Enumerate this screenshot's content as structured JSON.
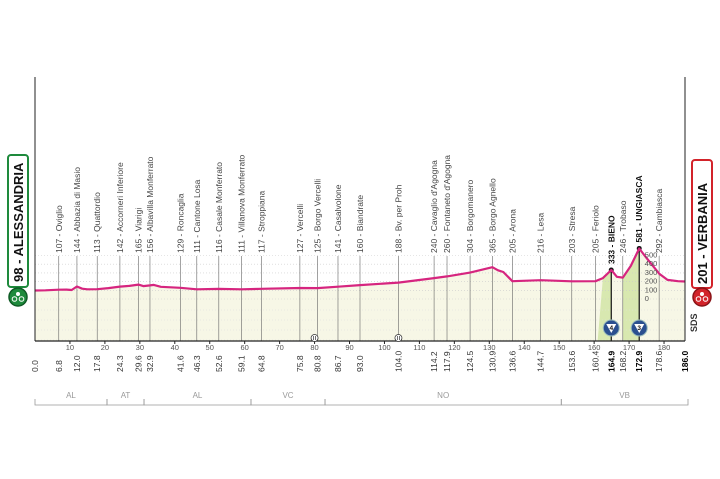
{
  "colors": {
    "profile": "#d6257f",
    "fill": "#f7f7e6",
    "climb_fill": "#d8e8b0",
    "start": "#1e8a3c",
    "finish": "#d2232a",
    "kom_badge": "#2a4f8f"
  },
  "start": {
    "label": "98 - ALESSANDRIA",
    "icon": "start-cyclist-icon"
  },
  "finish": {
    "label": "201 - VERBANIA",
    "icon": "finish-cyclist-icon"
  },
  "sponsor": "SDS",
  "chart_data": {
    "type": "area",
    "xlim": [
      0,
      186
    ],
    "x_unit": "km",
    "y_unit": "m",
    "km_ticks": [
      10,
      20,
      30,
      40,
      50,
      60,
      70,
      80,
      90,
      100,
      110,
      120,
      130,
      140,
      150,
      160,
      170,
      180
    ],
    "profile": [
      [
        0,
        98
      ],
      [
        3,
        100
      ],
      [
        6.8,
        107
      ],
      [
        9,
        108
      ],
      [
        10.5,
        104
      ],
      [
        12,
        144
      ],
      [
        13.5,
        118
      ],
      [
        15,
        112
      ],
      [
        17.8,
        113
      ],
      [
        21,
        125
      ],
      [
        24.3,
        142
      ],
      [
        27,
        150
      ],
      [
        29.6,
        165
      ],
      [
        31,
        148
      ],
      [
        32.9,
        156
      ],
      [
        34,
        162
      ],
      [
        36,
        140
      ],
      [
        41.6,
        129
      ],
      [
        46.3,
        111
      ],
      [
        52.6,
        116
      ],
      [
        59.1,
        111
      ],
      [
        64.8,
        117
      ],
      [
        75.8,
        127
      ],
      [
        80.8,
        125
      ],
      [
        86.7,
        141
      ],
      [
        93,
        160
      ],
      [
        104,
        188
      ],
      [
        114.2,
        240
      ],
      [
        117.9,
        260
      ],
      [
        124.5,
        304
      ],
      [
        130.9,
        365
      ],
      [
        132.5,
        330
      ],
      [
        134,
        310
      ],
      [
        136.6,
        205
      ],
      [
        144.7,
        216
      ],
      [
        153.6,
        203
      ],
      [
        160.4,
        205
      ],
      [
        162.5,
        240
      ],
      [
        164.9,
        333
      ],
      [
        166.5,
        255
      ],
      [
        168.2,
        246
      ],
      [
        170.5,
        380
      ],
      [
        172.9,
        581
      ],
      [
        175,
        470
      ],
      [
        178.6,
        292
      ],
      [
        181,
        220
      ],
      [
        184,
        205
      ],
      [
        186,
        201
      ]
    ],
    "waypoints": [
      {
        "km": "0.0"
      },
      {
        "km": "6.8",
        "label": "107 - Oviglio"
      },
      {
        "km": "12.0",
        "label": "144 - Abbazia di Masio"
      },
      {
        "km": "17.8",
        "label": "113 - Quattordio"
      },
      {
        "km": "24.3",
        "label": "142 - Accorneri Inferiore"
      },
      {
        "km": "29.6",
        "label": "165 - Viarigi"
      },
      {
        "km": "32.9",
        "label": "156 - Albavilla Monferrato"
      },
      {
        "km": "41.6",
        "label": "129 - Roncaglia"
      },
      {
        "km": "46.3",
        "label": "111 - Cantone Losa"
      },
      {
        "km": "52.6",
        "label": "116 - Casale Monferrato"
      },
      {
        "km": "59.1",
        "label": "111 - Villanova Monferrato"
      },
      {
        "km": "64.8",
        "label": "117 - Stroppiana"
      },
      {
        "km": "75.8",
        "label": "127 - Vercelli"
      },
      {
        "km": "80.8",
        "label": "125 - Borgo Vercelli"
      },
      {
        "km": "86.7",
        "label": "141 - Casalvolone"
      },
      {
        "km": "93.0",
        "label": "160 - Biandrate"
      },
      {
        "km": "104.0",
        "label": "188 - Bv. per Proh"
      },
      {
        "km": "114.2",
        "label": "240 - Cavaglio d'Agogna"
      },
      {
        "km": "117.9",
        "label": "260 - Fontaneto d'Agogna"
      },
      {
        "km": "124.5",
        "label": "304 - Borgomanero"
      },
      {
        "km": "130.9",
        "label": "365 - Borgo Agnello"
      },
      {
        "km": "136.6",
        "label": "205 - Arona"
      },
      {
        "km": "144.7",
        "label": "216 - Lesa"
      },
      {
        "km": "153.6",
        "label": "203 - Stresa"
      },
      {
        "km": "160.4",
        "label": "205 - Feriolo"
      },
      {
        "km": "164.9",
        "label": "333 - BIENO",
        "bold": true
      },
      {
        "km": "168.2",
        "label": "246 - Trobaso"
      },
      {
        "km": "172.9",
        "label": "581 - UNGIASCA",
        "bold": true
      },
      {
        "km": "178.6",
        "label": "292 - Cambiasca"
      },
      {
        "km": "186.0",
        "bold": true
      }
    ],
    "climbs": [
      {
        "name": "BIENO",
        "from": 161,
        "to": 164.9,
        "category": "4"
      },
      {
        "name": "UNGIASCA",
        "from": 168.2,
        "to": 172.9,
        "category": "3"
      }
    ],
    "elevation_scale": [
      "500",
      "400",
      "300",
      "200",
      "100",
      "0"
    ],
    "sprints": [
      80,
      104
    ],
    "regions": [
      {
        "code": "AL",
        "from": 0,
        "to": 20.6
      },
      {
        "code": "AT",
        "from": 20.6,
        "to": 31.2
      },
      {
        "code": "AL",
        "from": 31.2,
        "to": 61.8
      },
      {
        "code": "VC",
        "from": 61.8,
        "to": 83
      },
      {
        "code": "NO",
        "from": 83,
        "to": 150.6
      },
      {
        "code": "VB",
        "from": 150.6,
        "to": 187
      }
    ]
  }
}
